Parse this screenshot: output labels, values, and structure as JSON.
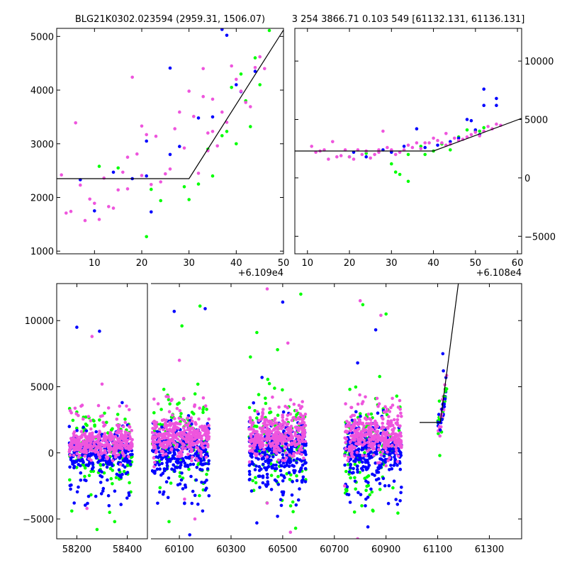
{
  "colors": {
    "green": "#00ff00",
    "blue": "#0000ff",
    "magenta": "#ee55dd",
    "black": "#000000"
  },
  "chart_data": [
    {
      "type": "scatter",
      "title": "BLG21K0302.023594 (2959.31, 1506.07)",
      "offset_label": "+6.109e4",
      "xlim": [
        2,
        50
      ],
      "ylim": [
        950,
        5150
      ],
      "x_ticks": [
        10,
        20,
        30,
        40,
        50
      ],
      "x_tick_labels": [
        "10",
        "20",
        "30",
        "40",
        "50"
      ],
      "y_ticks": [
        1000,
        2000,
        3000,
        4000,
        5000
      ],
      "y_tick_labels": [
        "1000",
        "2000",
        "3000",
        "4000",
        "5000"
      ],
      "model_line": [
        [
          2,
          2350
        ],
        [
          30,
          2350
        ],
        [
          50,
          5120
        ]
      ],
      "series": [
        {
          "name": "green",
          "color": "#00ff00",
          "points": [
            [
              11,
              2580
            ],
            [
              15,
              2550
            ],
            [
              21,
              1270
            ],
            [
              22,
              2150
            ],
            [
              24,
              1940
            ],
            [
              29,
              2200
            ],
            [
              30,
              1960
            ],
            [
              32,
              2250
            ],
            [
              34,
              2900
            ],
            [
              35,
              2400
            ],
            [
              37,
              3150
            ],
            [
              38,
              3230
            ],
            [
              39,
              4050
            ],
            [
              40,
              3000
            ],
            [
              41,
              4300
            ],
            [
              42,
              3800
            ],
            [
              43,
              3320
            ],
            [
              44,
              4600
            ],
            [
              45,
              4100
            ],
            [
              47,
              5110
            ]
          ]
        },
        {
          "name": "blue",
          "color": "#0000ff",
          "points": [
            [
              7,
              2330
            ],
            [
              10,
              1750
            ],
            [
              14,
              2470
            ],
            [
              18,
              2350
            ],
            [
              21,
              2400
            ],
            [
              21,
              3050
            ],
            [
              22,
              1730
            ],
            [
              26,
              4410
            ],
            [
              26,
              2800
            ],
            [
              28,
              2950
            ],
            [
              32,
              3480
            ],
            [
              35,
              3500
            ],
            [
              37,
              5130
            ],
            [
              38,
              5020
            ],
            [
              40,
              4100
            ],
            [
              41,
              3970
            ],
            [
              44,
              4350
            ]
          ]
        },
        {
          "name": "magenta",
          "color": "#ee55dd",
          "points": [
            [
              3,
              2420
            ],
            [
              4,
              1710
            ],
            [
              5,
              1740
            ],
            [
              6,
              3390
            ],
            [
              7,
              2230
            ],
            [
              8,
              1570
            ],
            [
              9,
              1970
            ],
            [
              10,
              1890
            ],
            [
              11,
              1590
            ],
            [
              12,
              2360
            ],
            [
              13,
              1830
            ],
            [
              14,
              1800
            ],
            [
              15,
              2140
            ],
            [
              16,
              2470
            ],
            [
              17,
              2750
            ],
            [
              17,
              2160
            ],
            [
              18,
              4240
            ],
            [
              19,
              2810
            ],
            [
              20,
              2410
            ],
            [
              20,
              3330
            ],
            [
              21,
              3170
            ],
            [
              22,
              2240
            ],
            [
              23,
              3140
            ],
            [
              24,
              2290
            ],
            [
              25,
              2440
            ],
            [
              26,
              2530
            ],
            [
              27,
              3280
            ],
            [
              28,
              3590
            ],
            [
              29,
              2920
            ],
            [
              30,
              3980
            ],
            [
              31,
              3510
            ],
            [
              32,
              2450
            ],
            [
              33,
              3880
            ],
            [
              33,
              4400
            ],
            [
              34,
              3200
            ],
            [
              34,
              2870
            ],
            [
              35,
              3830
            ],
            [
              35,
              3230
            ],
            [
              36,
              2960
            ],
            [
              37,
              3590
            ],
            [
              38,
              3400
            ],
            [
              39,
              4450
            ],
            [
              40,
              4200
            ],
            [
              41,
              3980
            ],
            [
              42,
              3770
            ],
            [
              43,
              3690
            ],
            [
              44,
              4420
            ],
            [
              45,
              4620
            ],
            [
              46,
              4400
            ]
          ]
        }
      ]
    },
    {
      "type": "scatter",
      "title": "3 254 3866.71 0.103 549 [61132.131, 61136.131]",
      "offset_label": "+6.108e4",
      "xlim": [
        7,
        61
      ],
      "ylim": [
        -6500,
        12800
      ],
      "x_ticks": [
        10,
        20,
        30,
        40,
        50,
        60
      ],
      "x_tick_labels": [
        "10",
        "20",
        "30",
        "40",
        "50",
        "60"
      ],
      "y_ticks": [
        -5000,
        0,
        5000,
        10000
      ],
      "y_tick_labels": [
        "−5000",
        "0",
        "5000",
        "10000"
      ],
      "model_line": [
        [
          7,
          2300
        ],
        [
          40,
          2300
        ],
        [
          61,
          5100
        ]
      ],
      "series": [
        {
          "name": "green",
          "color": "#00ff00",
          "points": [
            [
              20,
              1800
            ],
            [
              24,
              2100
            ],
            [
              30,
              1200
            ],
            [
              31,
              500
            ],
            [
              32,
              300
            ],
            [
              34,
              2000
            ],
            [
              34,
              -300
            ],
            [
              37,
              2700
            ],
            [
              38,
              2000
            ],
            [
              40,
              2300
            ],
            [
              42,
              2900
            ],
            [
              44,
              2400
            ],
            [
              46,
              3500
            ],
            [
              48,
              4100
            ],
            [
              50,
              4000
            ],
            [
              51,
              4000
            ],
            [
              52,
              4300
            ]
          ]
        },
        {
          "name": "blue",
          "color": "#0000ff",
          "points": [
            [
              21,
              2200
            ],
            [
              24,
              1800
            ],
            [
              28,
              2400
            ],
            [
              30,
              2200
            ],
            [
              33,
              2700
            ],
            [
              36,
              4200
            ],
            [
              38,
              2600
            ],
            [
              41,
              2800
            ],
            [
              44,
              3100
            ],
            [
              46,
              3400
            ],
            [
              48,
              5000
            ],
            [
              49,
              4900
            ],
            [
              50,
              4100
            ],
            [
              51,
              3700
            ],
            [
              52,
              6200
            ],
            [
              52,
              7600
            ],
            [
              55,
              6200
            ],
            [
              55,
              6800
            ]
          ]
        },
        {
          "name": "magenta",
          "color": "#ee55dd",
          "points": [
            [
              11,
              2700
            ],
            [
              12,
              2200
            ],
            [
              13,
              2300
            ],
            [
              14,
              2400
            ],
            [
              15,
              1600
            ],
            [
              16,
              3100
            ],
            [
              17,
              1800
            ],
            [
              18,
              1900
            ],
            [
              19,
              2400
            ],
            [
              20,
              1800
            ],
            [
              21,
              1600
            ],
            [
              22,
              2400
            ],
            [
              23,
              2000
            ],
            [
              24,
              2300
            ],
            [
              25,
              1700
            ],
            [
              26,
              2000
            ],
            [
              27,
              2400
            ],
            [
              27,
              2200
            ],
            [
              28,
              4000
            ],
            [
              29,
              2600
            ],
            [
              30,
              2400
            ],
            [
              31,
              2000
            ],
            [
              32,
              2200
            ],
            [
              33,
              2400
            ],
            [
              34,
              2800
            ],
            [
              35,
              2600
            ],
            [
              36,
              3000
            ],
            [
              37,
              2500
            ],
            [
              38,
              3000
            ],
            [
              39,
              3000
            ],
            [
              40,
              3400
            ],
            [
              41,
              3200
            ],
            [
              42,
              3000
            ],
            [
              43,
              2800
            ],
            [
              43,
              3800
            ],
            [
              44,
              2900
            ],
            [
              45,
              3400
            ],
            [
              46,
              3200
            ],
            [
              47,
              3300
            ],
            [
              48,
              3500
            ],
            [
              49,
              3700
            ],
            [
              50,
              3900
            ],
            [
              51,
              3600
            ],
            [
              52,
              4000
            ],
            [
              53,
              4400
            ],
            [
              54,
              4200
            ],
            [
              55,
              4600
            ],
            [
              56,
              4500
            ]
          ]
        }
      ]
    },
    {
      "type": "scatter",
      "title": "",
      "segments": [
        {
          "xlim": [
            58120,
            58480
          ],
          "x_ticks": [
            58200,
            58400
          ],
          "x_tick_labels": [
            "58200",
            "58400"
          ]
        },
        {
          "xlim": [
            59990,
            61425
          ],
          "x_ticks": [
            60100,
            60300,
            60500,
            60700,
            60900,
            61100,
            61300
          ],
          "x_tick_labels": [
            "60100",
            "60300",
            "60500",
            "60700",
            "60900",
            "61100",
            "61300"
          ]
        }
      ],
      "ylim": [
        -6500,
        12800
      ],
      "y_ticks": [
        -5000,
        0,
        5000,
        10000
      ],
      "y_tick_labels": [
        "−5000",
        "0",
        "5000",
        "10000"
      ],
      "model_line": [
        [
          61030,
          2300
        ],
        [
          61110,
          2300
        ],
        [
          61180,
          12800
        ]
      ],
      "season_clouds": [
        {
          "x_range": [
            58170,
            58420
          ],
          "core": [
            -600,
            1200
          ],
          "outliers": [
            [
              58180,
              -4400
            ],
            [
              58200,
              9500
            ],
            [
              58260,
              8800
            ],
            [
              58280,
              -5800
            ],
            [
              58290,
              9200
            ],
            [
              58300,
              5200
            ],
            [
              58350,
              -5200
            ],
            [
              58380,
              3800
            ],
            [
              58240,
              -4200
            ],
            [
              58330,
              -4500
            ]
          ]
        },
        {
          "x_range": [
            59995,
            60215
          ],
          "core": [
            -400,
            1800
          ],
          "outliers": [
            [
              60040,
              4800
            ],
            [
              60080,
              10700
            ],
            [
              60100,
              7000
            ],
            [
              60110,
              9600
            ],
            [
              60140,
              -6200
            ],
            [
              60160,
              -5000
            ],
            [
              60180,
              11100
            ],
            [
              60200,
              10900
            ],
            [
              60120,
              -3500
            ],
            [
              60060,
              -5200
            ],
            [
              60190,
              -4400
            ]
          ]
        },
        {
          "x_range": [
            60370,
            60590
          ],
          "core": [
            -500,
            2000
          ],
          "outliers": [
            [
              60400,
              9100
            ],
            [
              60420,
              5700
            ],
            [
              60440,
              12400
            ],
            [
              60480,
              7800
            ],
            [
              60500,
              11400
            ],
            [
              60520,
              8300
            ],
            [
              60570,
              12000
            ],
            [
              60480,
              -4800
            ],
            [
              60530,
              -6000
            ],
            [
              60550,
              -5700
            ],
            [
              60400,
              -5300
            ],
            [
              60440,
              -3800
            ]
          ]
        },
        {
          "x_range": [
            60740,
            60960
          ],
          "core": [
            -500,
            2000
          ],
          "outliers": [
            [
              60760,
              4800
            ],
            [
              60790,
              6800
            ],
            [
              60800,
              11500
            ],
            [
              60810,
              11200
            ],
            [
              60860,
              9300
            ],
            [
              60880,
              10400
            ],
            [
              60900,
              10500
            ],
            [
              60830,
              -5600
            ],
            [
              60790,
              -6500
            ],
            [
              60850,
              -4400
            ],
            [
              60820,
              -4000
            ],
            [
              60740,
              -2500
            ]
          ]
        }
      ],
      "bump_cloud": {
        "x_range": [
          61100,
          61135
        ]
      }
    }
  ]
}
